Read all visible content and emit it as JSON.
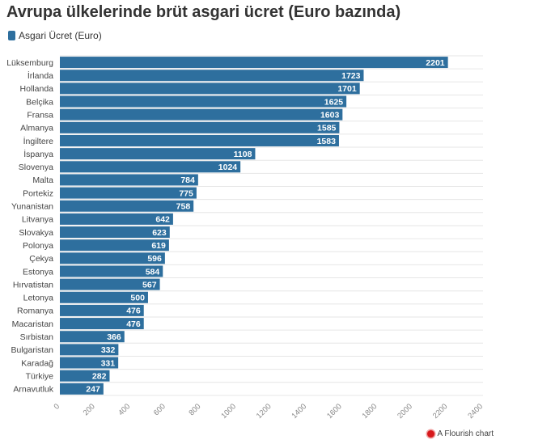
{
  "chart_data": {
    "type": "bar",
    "orientation": "horizontal",
    "title": "Avrupa ülkelerinde brüt asgari ücret (Euro bazında)",
    "legend": [
      "Asgari Ücret (Euro)"
    ],
    "bar_color": "#2e6f9e",
    "categories": [
      "Lüksemburg",
      "İrlanda",
      "Hollanda",
      "Belçika",
      "Fransa",
      "Almanya",
      "İngiltere",
      "İspanya",
      "Slovenya",
      "Malta",
      "Portekiz",
      "Yunanistan",
      "Litvanya",
      "Slovakya",
      "Polonya",
      "Çekya",
      "Estonya",
      "Hırvatistan",
      "Letonya",
      "Romanya",
      "Macaristan",
      "Sırbistan",
      "Bulgaristan",
      "Karadağ",
      "Türkiye",
      "Arnavutluk"
    ],
    "values": [
      2201,
      1723,
      1701,
      1625,
      1603,
      1585,
      1583,
      1108,
      1024,
      784,
      775,
      758,
      642,
      623,
      619,
      596,
      584,
      567,
      500,
      476,
      476,
      366,
      332,
      331,
      282,
      247
    ],
    "xlim": [
      0,
      2400
    ],
    "xticks": [
      "0",
      "200",
      "400",
      "600",
      "800",
      "1000",
      "1200",
      "1400",
      "1600",
      "1800",
      "2000",
      "2200",
      "2400"
    ],
    "grid": true
  },
  "credit": "A Flourish chart"
}
